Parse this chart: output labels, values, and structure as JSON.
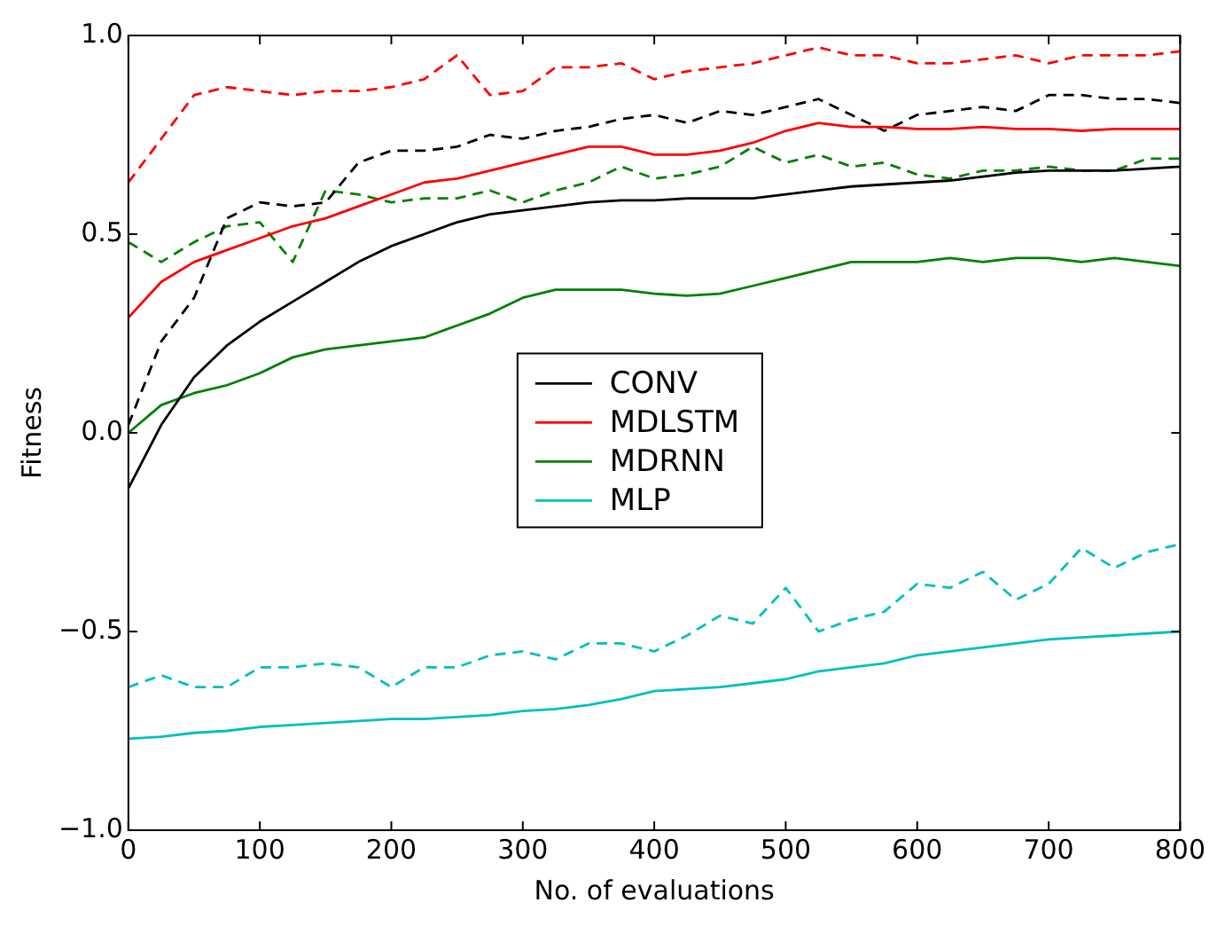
{
  "chart_data": {
    "type": "line",
    "xlabel": "No. of evaluations",
    "ylabel": "Fitness",
    "x": [
      0,
      25,
      50,
      75,
      100,
      125,
      150,
      175,
      200,
      225,
      250,
      275,
      300,
      325,
      350,
      375,
      400,
      425,
      450,
      475,
      500,
      525,
      550,
      575,
      600,
      625,
      650,
      675,
      700,
      725,
      750,
      775,
      800
    ],
    "xlim": [
      0,
      800
    ],
    "xticks": [
      0,
      100,
      200,
      300,
      400,
      500,
      600,
      700,
      800
    ],
    "ylim": [
      -1,
      1
    ],
    "yticks": [
      {
        "value": -1,
        "label": "−1.0"
      },
      {
        "value": -0.5,
        "label": "−0.5"
      },
      {
        "value": 0,
        "label": "0.0"
      },
      {
        "value": 0.5,
        "label": "0.5"
      },
      {
        "value": 1,
        "label": "1.0"
      }
    ],
    "grid": false,
    "legend": "center",
    "marker": "none",
    "series": [
      {
        "name": "CONV",
        "color": "#000000",
        "line_style": "solid",
        "values": [
          -0.14,
          0.02,
          0.14,
          0.22,
          0.28,
          0.33,
          0.38,
          0.43,
          0.47,
          0.5,
          0.53,
          0.55,
          0.56,
          0.57,
          0.58,
          0.585,
          0.585,
          0.59,
          0.59,
          0.59,
          0.6,
          0.61,
          0.62,
          0.625,
          0.63,
          0.635,
          0.645,
          0.655,
          0.66,
          0.66,
          0.66,
          0.665,
          0.67
        ]
      },
      {
        "name": "MDLSTM",
        "color": "#ff0000",
        "line_style": "solid",
        "values": [
          0.29,
          0.38,
          0.43,
          0.46,
          0.49,
          0.52,
          0.54,
          0.57,
          0.6,
          0.63,
          0.64,
          0.66,
          0.68,
          0.7,
          0.72,
          0.72,
          0.7,
          0.7,
          0.71,
          0.73,
          0.76,
          0.78,
          0.77,
          0.77,
          0.765,
          0.765,
          0.77,
          0.765,
          0.765,
          0.76,
          0.765,
          0.765,
          0.765
        ]
      },
      {
        "name": "MDRNN",
        "color": "#008000",
        "line_style": "solid",
        "values": [
          0,
          0.07,
          0.1,
          0.12,
          0.15,
          0.19,
          0.21,
          0.22,
          0.23,
          0.24,
          0.27,
          0.3,
          0.34,
          0.36,
          0.36,
          0.36,
          0.35,
          0.345,
          0.35,
          0.37,
          0.39,
          0.41,
          0.43,
          0.43,
          0.43,
          0.44,
          0.43,
          0.44,
          0.44,
          0.43,
          0.44,
          0.43,
          0.42
        ]
      },
      {
        "name": "MLP",
        "color": "#00bfbf",
        "line_style": "solid",
        "values": [
          -0.77,
          -0.765,
          -0.755,
          -0.75,
          -0.74,
          -0.735,
          -0.73,
          -0.725,
          -0.72,
          -0.72,
          -0.715,
          -0.71,
          -0.7,
          -0.695,
          -0.685,
          -0.67,
          -0.65,
          -0.645,
          -0.64,
          -0.63,
          -0.62,
          -0.6,
          -0.59,
          -0.58,
          -0.56,
          -0.55,
          -0.54,
          -0.53,
          -0.52,
          -0.515,
          -0.51,
          -0.505,
          -0.5
        ]
      },
      {
        "color": "#000000",
        "line_style": "dashed",
        "values": [
          0.02,
          0.23,
          0.34,
          0.54,
          0.58,
          0.57,
          0.58,
          0.68,
          0.71,
          0.71,
          0.72,
          0.75,
          0.74,
          0.76,
          0.77,
          0.79,
          0.8,
          0.78,
          0.81,
          0.8,
          0.82,
          0.84,
          0.8,
          0.76,
          0.8,
          0.81,
          0.82,
          0.81,
          0.85,
          0.85,
          0.84,
          0.84,
          0.83
        ]
      },
      {
        "color": "#ff0000",
        "line_style": "dashed",
        "values": [
          0.63,
          0.74,
          0.85,
          0.87,
          0.86,
          0.85,
          0.86,
          0.86,
          0.87,
          0.89,
          0.95,
          0.85,
          0.86,
          0.92,
          0.92,
          0.93,
          0.89,
          0.91,
          0.92,
          0.93,
          0.95,
          0.97,
          0.95,
          0.95,
          0.93,
          0.93,
          0.94,
          0.95,
          0.93,
          0.95,
          0.95,
          0.95,
          0.96
        ]
      },
      {
        "color": "#008000",
        "line_style": "dashed",
        "values": [
          0.48,
          0.43,
          0.48,
          0.52,
          0.53,
          0.43,
          0.61,
          0.6,
          0.58,
          0.59,
          0.59,
          0.61,
          0.58,
          0.61,
          0.63,
          0.67,
          0.64,
          0.65,
          0.67,
          0.72,
          0.68,
          0.7,
          0.67,
          0.68,
          0.65,
          0.64,
          0.66,
          0.66,
          0.67,
          0.66,
          0.66,
          0.69,
          0.69
        ]
      },
      {
        "color": "#00bfbf",
        "line_style": "dashed",
        "values": [
          -0.64,
          -0.61,
          -0.64,
          -0.64,
          -0.59,
          -0.59,
          -0.58,
          -0.59,
          -0.64,
          -0.59,
          -0.59,
          -0.56,
          -0.55,
          -0.57,
          -0.53,
          -0.53,
          -0.55,
          -0.51,
          -0.46,
          -0.48,
          -0.39,
          -0.5,
          -0.47,
          -0.45,
          -0.38,
          -0.39,
          -0.35,
          -0.42,
          -0.38,
          -0.29,
          -0.34,
          -0.3,
          -0.28
        ]
      }
    ]
  }
}
